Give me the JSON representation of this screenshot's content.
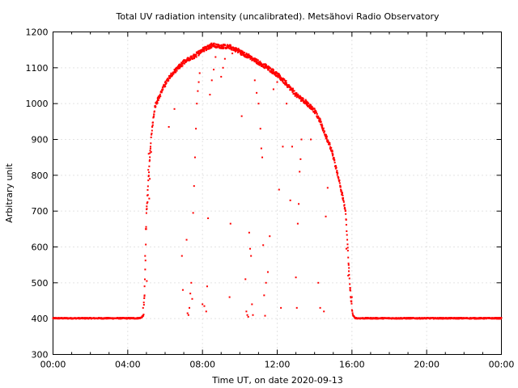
{
  "chart_data": {
    "type": "scatter",
    "title": "Total UV radiation intensity (uncalibrated). Metsähovi Radio Observatory",
    "xlabel": "Time UT, on date 2020-09-13",
    "ylabel": "Arbitrary unit",
    "xlim": [
      0,
      24
    ],
    "ylim": [
      300,
      1200
    ],
    "x_ticks": [
      {
        "value": 0,
        "label": "00:00"
      },
      {
        "value": 4,
        "label": "04:00"
      },
      {
        "value": 8,
        "label": "08:00"
      },
      {
        "value": 12,
        "label": "12:00"
      },
      {
        "value": 16,
        "label": "16:00"
      },
      {
        "value": 20,
        "label": "20:00"
      },
      {
        "value": 24,
        "label": "00:00"
      }
    ],
    "y_ticks": [
      {
        "value": 300,
        "label": "300"
      },
      {
        "value": 400,
        "label": "400"
      },
      {
        "value": 500,
        "label": "500"
      },
      {
        "value": 600,
        "label": "600"
      },
      {
        "value": 700,
        "label": "700"
      },
      {
        "value": 800,
        "label": "800"
      },
      {
        "value": 900,
        "label": "900"
      },
      {
        "value": 1000,
        "label": "1000"
      },
      {
        "value": 1100,
        "label": "1100"
      },
      {
        "value": 1200,
        "label": "1200"
      }
    ],
    "grid": true,
    "series": [
      {
        "color": "#ff0000",
        "envelope": [
          [
            0.0,
            401
          ],
          [
            4.5,
            401
          ],
          [
            4.7,
            402
          ],
          [
            4.85,
            410
          ],
          [
            4.95,
            560
          ],
          [
            5.0,
            700
          ],
          [
            5.1,
            780
          ],
          [
            5.2,
            870
          ],
          [
            5.3,
            930
          ],
          [
            5.4,
            975
          ],
          [
            5.5,
            1000
          ],
          [
            5.7,
            1020
          ],
          [
            6.0,
            1055
          ],
          [
            6.3,
            1080
          ],
          [
            6.7,
            1100
          ],
          [
            7.0,
            1115
          ],
          [
            7.5,
            1130
          ],
          [
            8.0,
            1150
          ],
          [
            8.5,
            1163
          ],
          [
            9.0,
            1160
          ],
          [
            9.5,
            1158
          ],
          [
            10.0,
            1145
          ],
          [
            10.5,
            1130
          ],
          [
            11.0,
            1115
          ],
          [
            11.5,
            1100
          ],
          [
            12.0,
            1080
          ],
          [
            12.5,
            1055
          ],
          [
            13.0,
            1025
          ],
          [
            13.5,
            1005
          ],
          [
            14.0,
            980
          ],
          [
            14.3,
            950
          ],
          [
            14.6,
            910
          ],
          [
            14.9,
            870
          ],
          [
            15.1,
            830
          ],
          [
            15.3,
            790
          ],
          [
            15.5,
            740
          ],
          [
            15.65,
            700
          ],
          [
            15.75,
            620
          ],
          [
            15.85,
            520
          ],
          [
            15.95,
            450
          ],
          [
            16.05,
            410
          ],
          [
            16.15,
            402
          ],
          [
            16.3,
            401
          ],
          [
            24.0,
            401
          ]
        ],
        "scattered_points": [
          [
            4.78,
            405
          ],
          [
            4.82,
            430
          ],
          [
            4.86,
            445
          ],
          [
            4.9,
            465
          ],
          [
            4.93,
            575
          ],
          [
            4.96,
            650
          ],
          [
            5.02,
            505
          ],
          [
            5.06,
            725
          ],
          [
            5.08,
            745
          ],
          [
            5.1,
            815
          ],
          [
            5.12,
            860
          ],
          [
            5.15,
            735
          ],
          [
            5.18,
            790
          ],
          [
            5.22,
            880
          ],
          [
            5.25,
            865
          ],
          [
            6.2,
            935
          ],
          [
            6.5,
            985
          ],
          [
            6.9,
            575
          ],
          [
            6.95,
            480
          ],
          [
            7.15,
            620
          ],
          [
            7.2,
            415
          ],
          [
            7.25,
            410
          ],
          [
            7.3,
            430
          ],
          [
            7.35,
            470
          ],
          [
            7.4,
            500
          ],
          [
            7.45,
            455
          ],
          [
            7.5,
            695
          ],
          [
            7.55,
            770
          ],
          [
            7.6,
            850
          ],
          [
            7.65,
            930
          ],
          [
            7.7,
            1000
          ],
          [
            7.75,
            1035
          ],
          [
            7.8,
            1060
          ],
          [
            7.85,
            1085
          ],
          [
            8.0,
            440
          ],
          [
            8.1,
            435
          ],
          [
            8.2,
            420
          ],
          [
            8.25,
            490
          ],
          [
            8.3,
            680
          ],
          [
            8.4,
            1025
          ],
          [
            8.5,
            1065
          ],
          [
            8.6,
            1095
          ],
          [
            8.7,
            1130
          ],
          [
            9.0,
            1075
          ],
          [
            9.1,
            1100
          ],
          [
            9.2,
            1125
          ],
          [
            9.45,
            460
          ],
          [
            9.5,
            665
          ],
          [
            9.6,
            1140
          ],
          [
            10.1,
            965
          ],
          [
            10.3,
            510
          ],
          [
            10.35,
            420
          ],
          [
            10.4,
            410
          ],
          [
            10.45,
            405
          ],
          [
            10.5,
            640
          ],
          [
            10.55,
            595
          ],
          [
            10.6,
            575
          ],
          [
            10.65,
            440
          ],
          [
            10.7,
            410
          ],
          [
            10.8,
            1065
          ],
          [
            10.9,
            1030
          ],
          [
            11.0,
            1000
          ],
          [
            11.1,
            930
          ],
          [
            11.15,
            875
          ],
          [
            11.2,
            850
          ],
          [
            11.25,
            605
          ],
          [
            11.3,
            465
          ],
          [
            11.35,
            408
          ],
          [
            11.4,
            500
          ],
          [
            11.5,
            530
          ],
          [
            11.6,
            630
          ],
          [
            11.8,
            1040
          ],
          [
            12.0,
            1060
          ],
          [
            12.1,
            760
          ],
          [
            12.2,
            430
          ],
          [
            12.3,
            880
          ],
          [
            12.5,
            1000
          ],
          [
            12.7,
            730
          ],
          [
            12.8,
            880
          ],
          [
            13.0,
            515
          ],
          [
            13.05,
            430
          ],
          [
            13.1,
            665
          ],
          [
            13.15,
            720
          ],
          [
            13.2,
            810
          ],
          [
            13.25,
            845
          ],
          [
            13.3,
            900
          ],
          [
            13.5,
            1000
          ],
          [
            13.8,
            900
          ],
          [
            14.2,
            500
          ],
          [
            14.3,
            430
          ],
          [
            14.5,
            420
          ],
          [
            14.6,
            685
          ],
          [
            14.7,
            765
          ],
          [
            15.7,
            595
          ],
          [
            15.8,
            520
          ],
          [
            15.9,
            480
          ],
          [
            16.0,
            460
          ]
        ]
      }
    ]
  }
}
